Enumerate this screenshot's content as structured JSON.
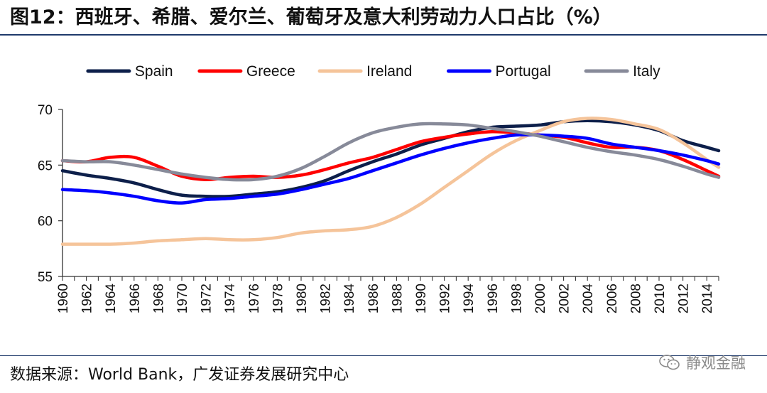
{
  "title": "图12：西班牙、希腊、爱尔兰、葡萄牙及意大利劳动力人口占比（%）",
  "source": "数据来源：World Bank，广发证券发展研究中心",
  "watermark": "静观金融",
  "chart_data": {
    "type": "line",
    "title": "图12：西班牙、希腊、爱尔兰、葡萄牙及意大利劳动力人口占比（%）",
    "xlabel": "",
    "ylabel": "",
    "xlim": [
      1960,
      2015
    ],
    "ylim": [
      55,
      70
    ],
    "yticks": [
      55,
      60,
      65,
      70
    ],
    "xticks": [
      1960,
      1962,
      1964,
      1966,
      1968,
      1970,
      1972,
      1974,
      1976,
      1978,
      1980,
      1982,
      1984,
      1986,
      1988,
      1990,
      1992,
      1994,
      1996,
      1998,
      2000,
      2002,
      2004,
      2006,
      2008,
      2010,
      2012,
      2014
    ],
    "grid": false,
    "legend_position": "top",
    "x": [
      1960,
      1962,
      1964,
      1966,
      1968,
      1970,
      1972,
      1974,
      1976,
      1978,
      1980,
      1982,
      1984,
      1986,
      1988,
      1990,
      1992,
      1994,
      1996,
      1998,
      2000,
      2002,
      2004,
      2006,
      2008,
      2010,
      2012,
      2014,
      2015
    ],
    "series": [
      {
        "name": "Spain",
        "color": "#0d1f4a",
        "values": [
          64.5,
          64.1,
          63.8,
          63.4,
          62.8,
          62.3,
          62.2,
          62.2,
          62.4,
          62.6,
          63.0,
          63.6,
          64.5,
          65.3,
          66.0,
          66.8,
          67.4,
          68.0,
          68.4,
          68.5,
          68.6,
          68.9,
          69.0,
          68.9,
          68.6,
          68.1,
          67.2,
          66.6,
          66.3
        ]
      },
      {
        "name": "Greece",
        "color": "#ff0000",
        "values": [
          65.4,
          65.3,
          65.7,
          65.7,
          64.9,
          64.0,
          63.7,
          63.9,
          64.0,
          63.9,
          64.1,
          64.6,
          65.2,
          65.7,
          66.4,
          67.1,
          67.5,
          67.8,
          68.0,
          67.9,
          67.7,
          67.5,
          67.0,
          66.6,
          66.6,
          66.3,
          65.5,
          64.5,
          64.0
        ]
      },
      {
        "name": "Ireland",
        "color": "#f5c49a",
        "values": [
          57.9,
          57.9,
          57.9,
          58.0,
          58.2,
          58.3,
          58.4,
          58.3,
          58.3,
          58.5,
          58.9,
          59.1,
          59.2,
          59.5,
          60.3,
          61.5,
          63.0,
          64.5,
          66.0,
          67.2,
          68.1,
          68.9,
          69.2,
          69.1,
          68.7,
          68.2,
          67.0,
          65.5,
          64.8
        ]
      },
      {
        "name": "Portugal",
        "color": "#0000ff",
        "values": [
          62.8,
          62.7,
          62.5,
          62.2,
          61.8,
          61.6,
          61.9,
          62.0,
          62.2,
          62.4,
          62.8,
          63.3,
          63.8,
          64.5,
          65.2,
          65.9,
          66.5,
          67.0,
          67.4,
          67.7,
          67.7,
          67.6,
          67.4,
          66.9,
          66.6,
          66.3,
          65.9,
          65.4,
          65.1
        ]
      },
      {
        "name": "Italy",
        "color": "#878a99",
        "values": [
          65.4,
          65.3,
          65.3,
          65.0,
          64.6,
          64.2,
          63.9,
          63.7,
          63.7,
          64.0,
          64.7,
          65.8,
          67.0,
          67.9,
          68.4,
          68.7,
          68.7,
          68.6,
          68.3,
          68.0,
          67.6,
          67.1,
          66.6,
          66.2,
          65.9,
          65.5,
          64.9,
          64.2,
          63.9
        ]
      }
    ]
  }
}
